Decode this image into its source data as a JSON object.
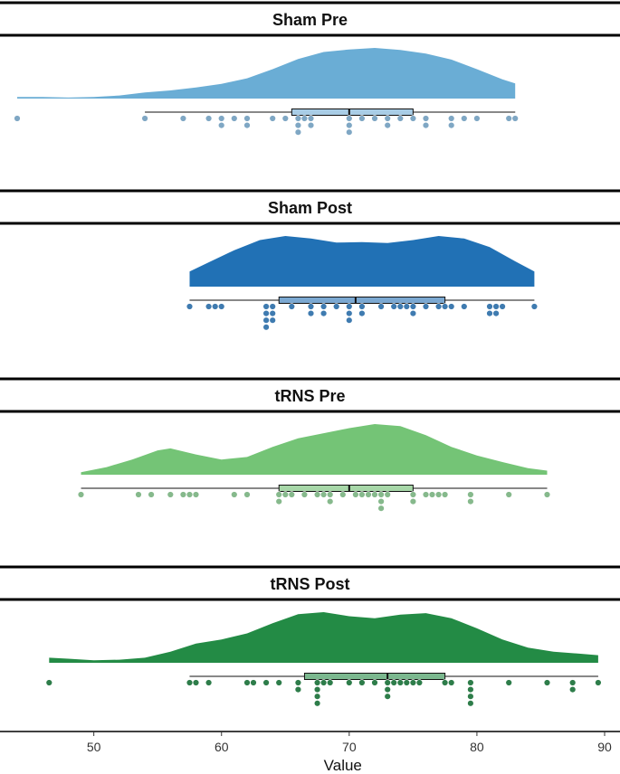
{
  "chart_data": {
    "type": "raincloud",
    "xlabel": "Value",
    "xlim": [
      44,
      90
    ],
    "xticks": [
      50,
      60,
      70,
      80,
      90
    ],
    "panels": [
      {
        "title": "Sham Pre",
        "color": "#6aadd5",
        "dot_color": "#7fa7c4",
        "box_fill": "#a9cde6",
        "density": [
          [
            44,
            0.03
          ],
          [
            46,
            0.03
          ],
          [
            48,
            0.02
          ],
          [
            50,
            0.03
          ],
          [
            52,
            0.06
          ],
          [
            54,
            0.12
          ],
          [
            56,
            0.16
          ],
          [
            58,
            0.22
          ],
          [
            60,
            0.29
          ],
          [
            62,
            0.4
          ],
          [
            64,
            0.58
          ],
          [
            66,
            0.78
          ],
          [
            68,
            0.92
          ],
          [
            70,
            0.97
          ],
          [
            72,
            1.0
          ],
          [
            74,
            0.96
          ],
          [
            76,
            0.89
          ],
          [
            78,
            0.77
          ],
          [
            80,
            0.58
          ],
          [
            82,
            0.38
          ],
          [
            83,
            0.3
          ]
        ],
        "box": {
          "min": 54,
          "q1": 65.5,
          "median": 70,
          "q3": 75,
          "max": 83
        },
        "points": [
          44,
          54,
          57,
          59,
          60,
          60,
          61,
          62,
          62,
          64,
          65,
          66,
          66,
          66,
          66.5,
          67,
          67,
          70,
          70,
          70,
          71,
          72,
          73,
          73,
          74,
          75,
          76,
          76,
          78,
          78,
          79,
          80,
          82.5,
          83
        ]
      },
      {
        "title": "Sham Post",
        "color": "#2171b5",
        "dot_color": "#3f7bb0",
        "box_fill": "#7ba8d1",
        "density": [
          [
            57.5,
            0.3
          ],
          [
            59,
            0.48
          ],
          [
            61,
            0.72
          ],
          [
            63,
            0.92
          ],
          [
            65,
            1.0
          ],
          [
            67,
            0.95
          ],
          [
            69,
            0.87
          ],
          [
            71,
            0.88
          ],
          [
            73,
            0.86
          ],
          [
            75,
            0.92
          ],
          [
            77,
            1.0
          ],
          [
            79,
            0.95
          ],
          [
            81,
            0.78
          ],
          [
            83,
            0.5
          ],
          [
            84.5,
            0.3
          ]
        ],
        "box": {
          "min": 57.5,
          "q1": 64.5,
          "median": 70.5,
          "q3": 77.5,
          "max": 84.5
        },
        "points": [
          57.5,
          59,
          59.5,
          60,
          63.5,
          63.5,
          63.5,
          63.5,
          64,
          64,
          64,
          65.5,
          67,
          67,
          68,
          68,
          69,
          70,
          70,
          70,
          71,
          71,
          72.5,
          73.5,
          74,
          74.5,
          75,
          75,
          76,
          77,
          77.5,
          78,
          79,
          81,
          81,
          81.5,
          81.5,
          82,
          84.5
        ]
      },
      {
        "title": "tRNS Pre",
        "color": "#74c476",
        "dot_color": "#86b98c",
        "box_fill": "#a7d7a8",
        "density": [
          [
            49,
            0.05
          ],
          [
            51,
            0.15
          ],
          [
            53,
            0.3
          ],
          [
            55,
            0.48
          ],
          [
            56,
            0.52
          ],
          [
            58,
            0.4
          ],
          [
            60,
            0.3
          ],
          [
            62,
            0.35
          ],
          [
            64,
            0.55
          ],
          [
            66,
            0.72
          ],
          [
            68,
            0.82
          ],
          [
            70,
            0.92
          ],
          [
            72,
            1.0
          ],
          [
            74,
            0.96
          ],
          [
            76,
            0.78
          ],
          [
            78,
            0.55
          ],
          [
            80,
            0.38
          ],
          [
            82,
            0.25
          ],
          [
            84,
            0.13
          ],
          [
            85.5,
            0.08
          ]
        ],
        "box": {
          "min": 49,
          "q1": 64.5,
          "median": 70,
          "q3": 75,
          "max": 85.5
        },
        "points": [
          49,
          53.5,
          54.5,
          56,
          57,
          57.5,
          58,
          61,
          62,
          64.5,
          64.5,
          65,
          65.5,
          66.5,
          67.5,
          68,
          68.5,
          68.5,
          69.5,
          70.5,
          71,
          71.5,
          72,
          72.5,
          72.5,
          72.5,
          73,
          75,
          75,
          76,
          76.5,
          77,
          77.5,
          79.5,
          79.5,
          82.5,
          85.5
        ]
      },
      {
        "title": "tRNS Post",
        "color": "#238b45",
        "dot_color": "#2e7d4a",
        "box_fill": "#7bb88f",
        "density": [
          [
            46.5,
            0.1
          ],
          [
            48,
            0.08
          ],
          [
            50,
            0.05
          ],
          [
            52,
            0.06
          ],
          [
            54,
            0.1
          ],
          [
            56,
            0.22
          ],
          [
            58,
            0.38
          ],
          [
            60,
            0.46
          ],
          [
            62,
            0.58
          ],
          [
            64,
            0.78
          ],
          [
            66,
            0.96
          ],
          [
            68,
            1.0
          ],
          [
            70,
            0.92
          ],
          [
            72,
            0.88
          ],
          [
            74,
            0.95
          ],
          [
            76,
            0.98
          ],
          [
            78,
            0.88
          ],
          [
            80,
            0.68
          ],
          [
            82,
            0.46
          ],
          [
            84,
            0.3
          ],
          [
            86,
            0.22
          ],
          [
            88,
            0.18
          ],
          [
            89.5,
            0.15
          ]
        ],
        "box": {
          "min": 57.5,
          "q1": 66.5,
          "median": 73,
          "q3": 77.5,
          "max": 89.5
        },
        "points": [
          46.5,
          57.5,
          58,
          59,
          62,
          62.5,
          63.5,
          64.5,
          66,
          66,
          67.5,
          67.5,
          67.5,
          67.5,
          68,
          68.5,
          70,
          71,
          72,
          73,
          73,
          73,
          73.5,
          74,
          74.5,
          75,
          75.5,
          77.5,
          78,
          79.5,
          79.5,
          79.5,
          79.5,
          82.5,
          85.5,
          87.5,
          87.5,
          89.5
        ]
      }
    ]
  }
}
